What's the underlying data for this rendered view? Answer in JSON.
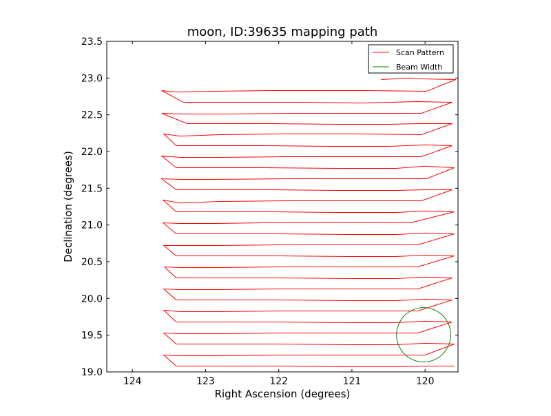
{
  "chart_data": {
    "type": "line",
    "title": "moon, ID:39635 mapping path",
    "xlabel": "Right Ascension (degrees)",
    "ylabel": "Declination (degrees)",
    "xlim": [
      124.35,
      119.55
    ],
    "ylim": [
      19.0,
      23.5
    ],
    "x_inverted": true,
    "xticks": [
      124,
      123,
      122,
      121,
      120
    ],
    "xtick_labels": [
      "124",
      "123",
      "122",
      "121",
      "120"
    ],
    "yticks": [
      19.0,
      19.5,
      20.0,
      20.5,
      21.0,
      21.5,
      22.0,
      22.5,
      23.0,
      23.5
    ],
    "ytick_labels": [
      "19.0",
      "19.5",
      "20.0",
      "20.5",
      "21.0",
      "21.5",
      "22.0",
      "22.5",
      "23.0",
      "23.5"
    ],
    "grid": false,
    "legend_position": "top-right",
    "series": [
      {
        "name": "Scan Pattern",
        "color": "#ff0000",
        "x": [
          120.6,
          120.2,
          120.1,
          119.58,
          119.98,
          120.8,
          121.3,
          122.1,
          122.9,
          123.4,
          123.6,
          123.3,
          123.0,
          122.3,
          121.7,
          120.9,
          120.1,
          119.63,
          120.05,
          121.0,
          121.9,
          122.7,
          123.25,
          123.6,
          123.25,
          122.8,
          122.1,
          121.2,
          120.5,
          120.1,
          119.63,
          120.05,
          121.0,
          121.9,
          122.8,
          123.35,
          123.57,
          123.4,
          123.0,
          122.2,
          121.3,
          120.5,
          120.0,
          119.63,
          120.05,
          121.0,
          121.9,
          122.8,
          123.35,
          123.6,
          123.4,
          123.0,
          122.2,
          121.2,
          120.4,
          120.0,
          119.6,
          119.98,
          121.0,
          121.9,
          122.9,
          123.35,
          123.6,
          123.4,
          122.9,
          122.1,
          121.2,
          120.4,
          120.0,
          119.63,
          120.05,
          121.0,
          121.9,
          122.8,
          123.35,
          123.58,
          123.4,
          122.9,
          122.1,
          121.2,
          120.4,
          120.0,
          119.6,
          120.2,
          121.2,
          122.2,
          122.9,
          123.35,
          123.58,
          123.4,
          122.9,
          122.0,
          121.0,
          120.4,
          120.0,
          119.6,
          120.1,
          121.0,
          122.0,
          122.8,
          123.35,
          123.57,
          123.4,
          122.9,
          122.0,
          121.0,
          120.4,
          120.0,
          119.6,
          120.1,
          121.0,
          122.0,
          122.8,
          123.35,
          123.56,
          123.4,
          122.8,
          122.0,
          121.0,
          120.4,
          120.0,
          119.63,
          120.1,
          121.0,
          122.0,
          122.8,
          123.35,
          123.57,
          123.4,
          122.8,
          122.0,
          121.0,
          120.4,
          120.0,
          119.63,
          120.1,
          121.0,
          122.0,
          122.8,
          123.35,
          123.57,
          123.4,
          122.8,
          122.0,
          121.0,
          120.4,
          120.0,
          119.63,
          120.1,
          121.0,
          122.0,
          122.8,
          123.35,
          123.57,
          123.4,
          122.8,
          122.0,
          121.0,
          120.4,
          120.0,
          119.6,
          120.0,
          121.0,
          122.0,
          122.8,
          123.35,
          123.57,
          123.4,
          122.8,
          122.0,
          121.0,
          120.4,
          120.0,
          119.6
        ],
        "y": [
          22.98,
          23.0,
          22.99,
          22.98,
          22.82,
          22.83,
          22.83,
          22.83,
          22.82,
          22.81,
          22.83,
          22.67,
          22.67,
          22.67,
          22.67,
          22.66,
          22.68,
          22.67,
          22.52,
          22.52,
          22.52,
          22.51,
          22.51,
          22.52,
          22.38,
          22.38,
          22.38,
          22.37,
          22.37,
          22.38,
          22.38,
          22.23,
          22.24,
          22.24,
          22.23,
          22.21,
          22.24,
          22.08,
          22.08,
          22.08,
          22.07,
          22.07,
          22.09,
          22.08,
          21.93,
          21.93,
          21.93,
          21.92,
          21.92,
          21.94,
          21.78,
          21.78,
          21.78,
          21.77,
          21.77,
          21.8,
          21.78,
          21.63,
          21.63,
          21.63,
          21.62,
          21.62,
          21.63,
          21.48,
          21.48,
          21.48,
          21.47,
          21.47,
          21.48,
          21.48,
          21.33,
          21.33,
          21.33,
          21.32,
          21.3,
          21.34,
          21.18,
          21.18,
          21.18,
          21.17,
          21.17,
          21.19,
          21.18,
          21.03,
          21.03,
          21.03,
          21.02,
          21.02,
          21.03,
          20.88,
          20.88,
          20.88,
          20.87,
          20.87,
          20.89,
          20.88,
          20.73,
          20.73,
          20.73,
          20.72,
          20.72,
          20.72,
          20.58,
          20.58,
          20.58,
          20.57,
          20.57,
          20.59,
          20.58,
          20.43,
          20.43,
          20.43,
          20.42,
          20.42,
          20.43,
          20.28,
          20.28,
          20.28,
          20.27,
          20.27,
          20.29,
          20.28,
          20.13,
          20.13,
          20.13,
          20.12,
          20.12,
          20.13,
          19.98,
          19.98,
          19.98,
          19.97,
          19.97,
          19.99,
          19.98,
          19.83,
          19.83,
          19.83,
          19.82,
          19.82,
          19.84,
          19.68,
          19.68,
          19.68,
          19.67,
          19.67,
          19.69,
          19.68,
          19.53,
          19.53,
          19.53,
          19.52,
          19.52,
          19.53,
          19.38,
          19.38,
          19.38,
          19.37,
          19.37,
          19.39,
          19.38,
          19.23,
          19.23,
          19.23,
          19.22,
          19.22,
          19.23,
          19.08,
          19.08,
          19.08,
          19.07,
          19.07,
          19.08,
          19.08
        ]
      },
      {
        "name": "Beam Width",
        "color": "#008000",
        "shape": "circle",
        "center": [
          120.02,
          19.505
        ],
        "radius_deg": 0.37
      }
    ]
  }
}
